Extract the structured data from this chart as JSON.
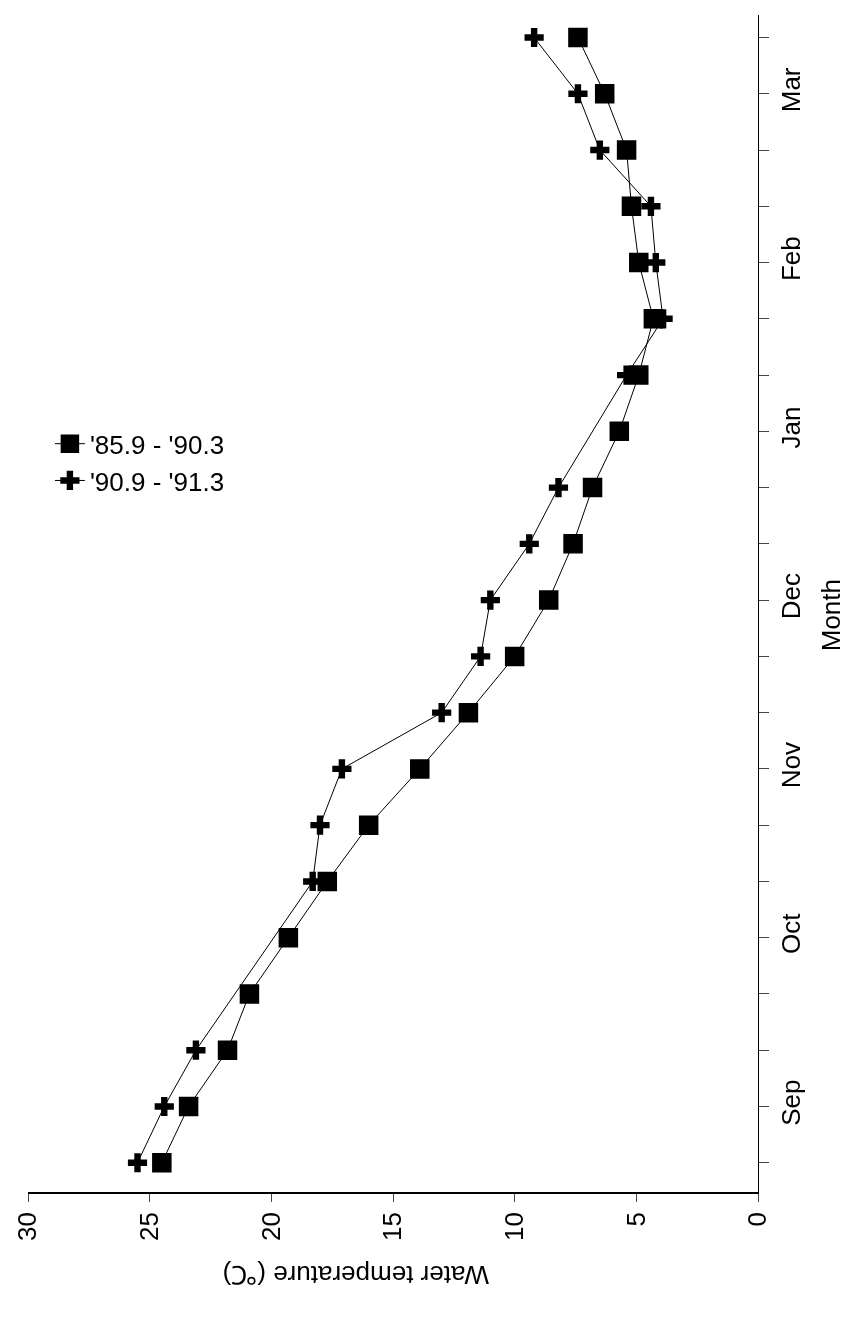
{
  "chart_data": {
    "type": "line",
    "xlabel": "Water temperature (℃)",
    "ylabel": "Month",
    "categories": [
      null,
      "Mar",
      null,
      null,
      "Feb",
      null,
      null,
      "Jan",
      null,
      null,
      "Dec",
      null,
      null,
      "Nov",
      null,
      null,
      "Oct",
      null,
      null,
      "Sep",
      null
    ],
    "series": [
      {
        "name": "'85.9 - '90.3",
        "color": "#000000",
        "marker": "square",
        "values": [
          7.4,
          6.3,
          5.4,
          5.2,
          4.9,
          4.3,
          4.9,
          5.7,
          6.8,
          7.6,
          8.6,
          10.0,
          11.9,
          13.9,
          16.0,
          17.7,
          19.3,
          20.9,
          21.8,
          23.4,
          24.5
        ]
      },
      {
        "name": "'90.9 - '91.3",
        "color": "#000000",
        "marker": "cross",
        "values": [
          9.2,
          7.4,
          6.5,
          4.4,
          4.2,
          3.9,
          5.4,
          null,
          8.2,
          9.4,
          11.0,
          11.4,
          13.0,
          17.1,
          18.0,
          18.3,
          null,
          null,
          23.1,
          24.4,
          25.5
        ]
      }
    ],
    "orientation": "horizontal",
    "xlim": [
      30,
      0
    ],
    "xticks": [
      0,
      5,
      10,
      15,
      20,
      25,
      30
    ],
    "line_style": "solid",
    "legend": "left"
  }
}
